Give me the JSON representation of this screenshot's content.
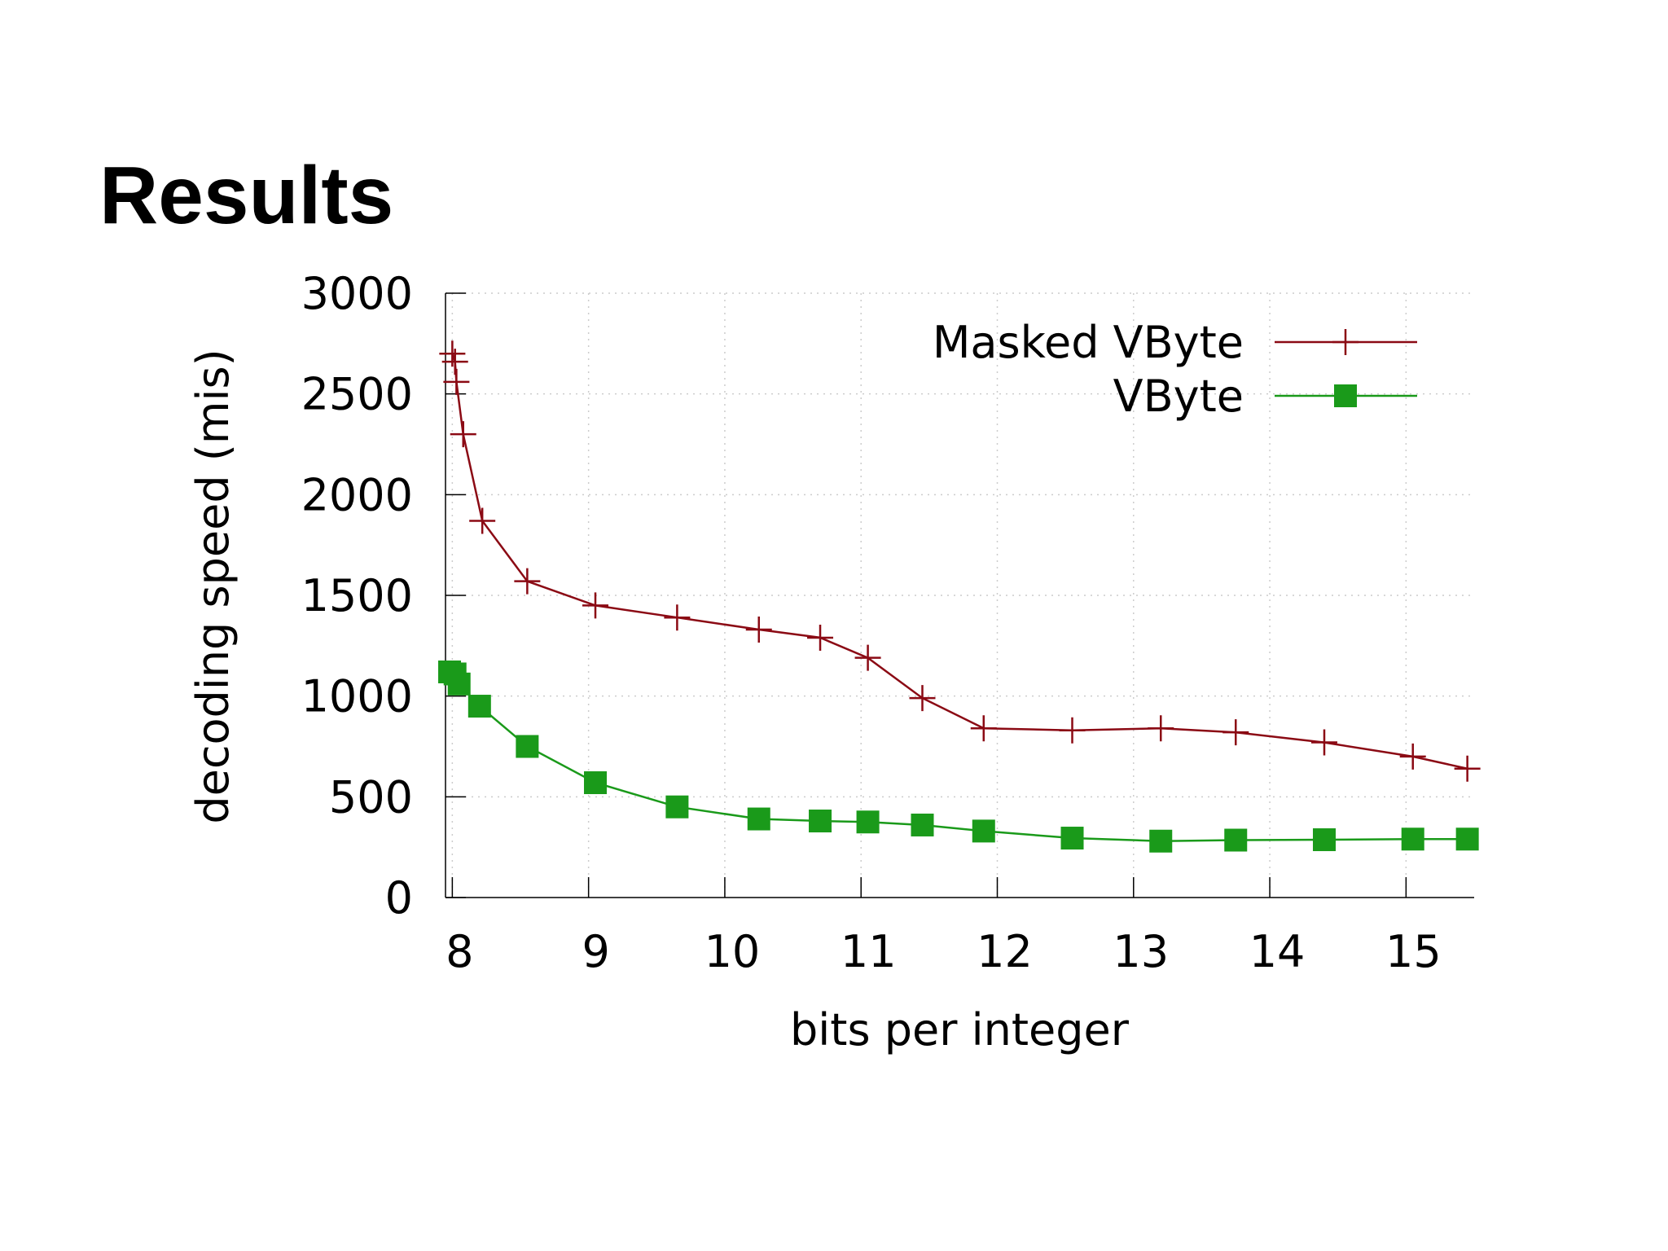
{
  "slide": {
    "title": "Results"
  },
  "chart_data": {
    "type": "line",
    "title": "",
    "xlabel": "bits per integer",
    "ylabel": "decoding speed (mis)",
    "xlim": [
      7.95,
      15.5
    ],
    "ylim": [
      0,
      3000
    ],
    "x_ticks": [
      "8",
      "9",
      "10",
      "11",
      "12",
      "13",
      "14",
      "15"
    ],
    "y_ticks": [
      "0",
      "500",
      "1000",
      "1500",
      "2000",
      "2500",
      "3000"
    ],
    "grid": true,
    "legend_position": "top-right",
    "series": [
      {
        "name": "Masked VByte",
        "color": "#8b0a14",
        "marker": "plus",
        "x": [
          8.0,
          8.02,
          8.03,
          8.08,
          8.22,
          8.55,
          9.05,
          9.65,
          10.25,
          10.7,
          11.05,
          11.45,
          11.9,
          12.55,
          13.2,
          13.75,
          14.4,
          15.05,
          15.45
        ],
        "y": [
          2700,
          2660,
          2560,
          2300,
          1870,
          1570,
          1450,
          1390,
          1330,
          1290,
          1190,
          990,
          840,
          830,
          840,
          820,
          770,
          700,
          640
        ]
      },
      {
        "name": "VByte",
        "color": "#1a9a1a",
        "marker": "square",
        "x": [
          7.98,
          8.02,
          8.05,
          8.2,
          8.55,
          9.05,
          9.65,
          10.25,
          10.7,
          11.05,
          11.45,
          11.9,
          12.55,
          13.2,
          13.75,
          14.4,
          15.05,
          15.45
        ],
        "y": [
          1120,
          1110,
          1060,
          950,
          750,
          570,
          450,
          390,
          380,
          375,
          360,
          330,
          295,
          280,
          285,
          287,
          290,
          290
        ]
      }
    ]
  }
}
